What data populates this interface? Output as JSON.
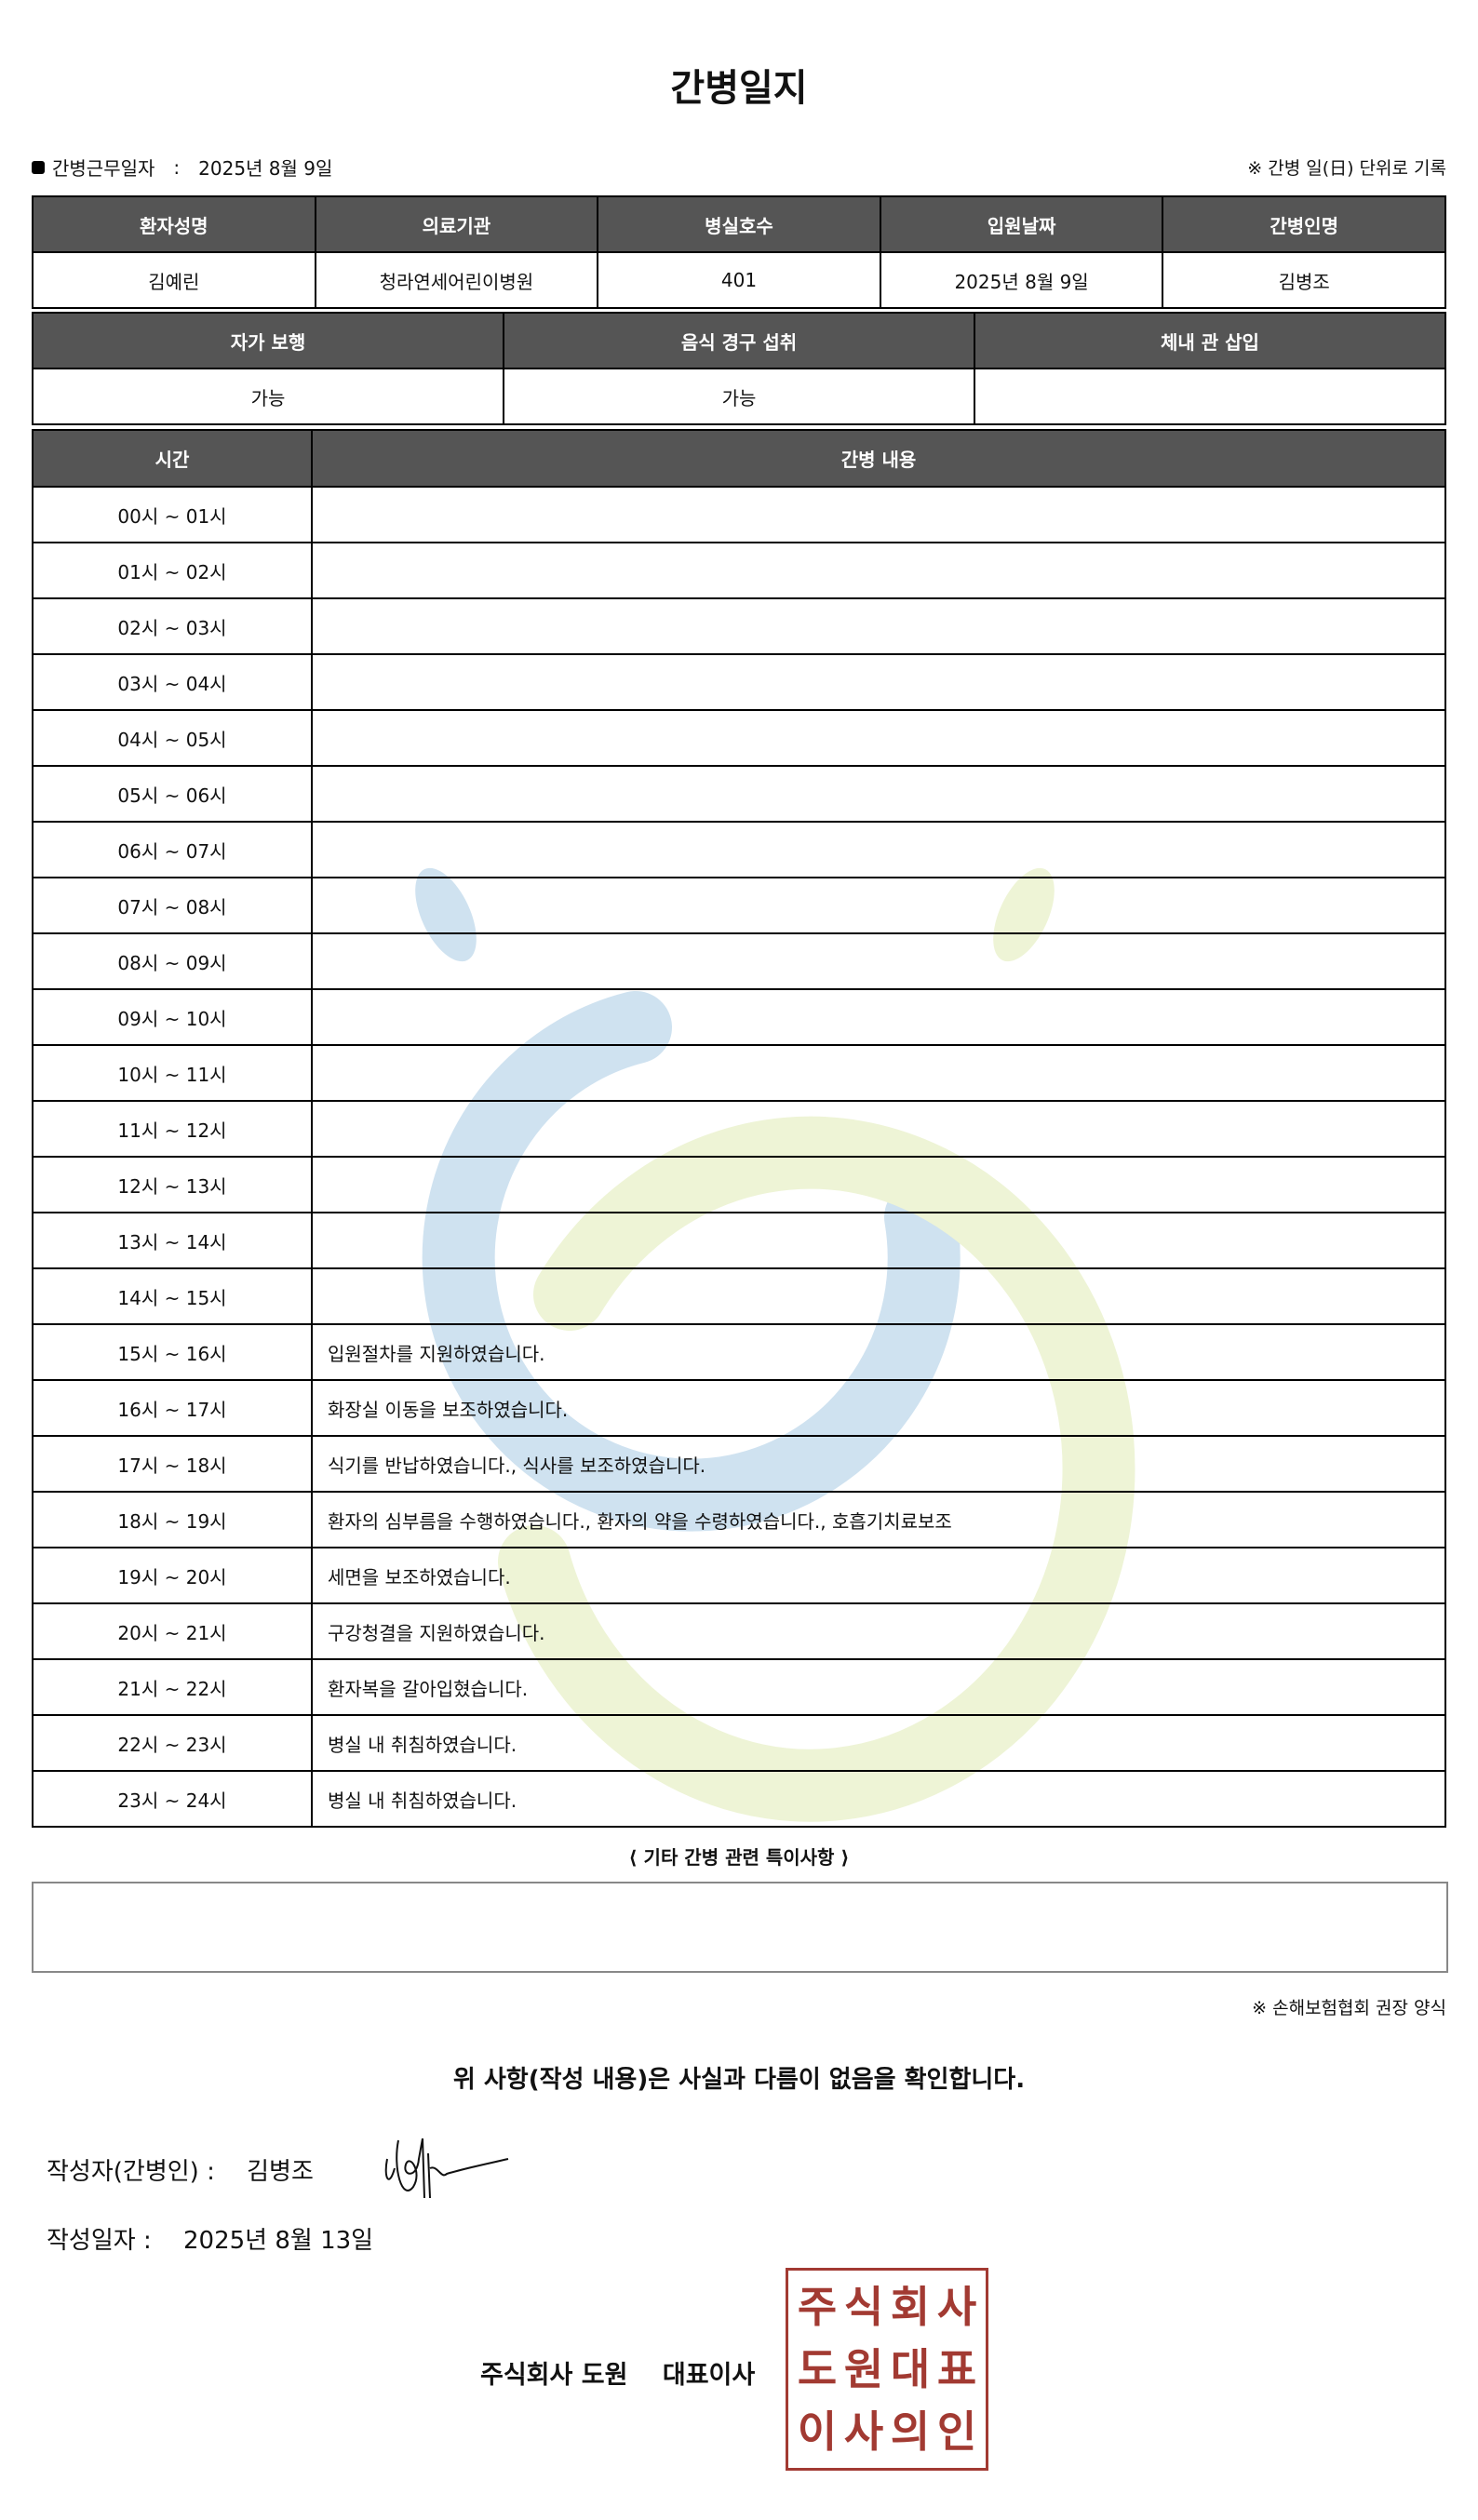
{
  "title": "간병일지",
  "work_date": {
    "label": "간병근무일자",
    "sep": ":",
    "value": "2025년 8월 9일"
  },
  "unit_note": "※ 간병 일(日) 단위로 기록",
  "patient_table": {
    "headers": [
      "환자성명",
      "의료기관",
      "병실호수",
      "입원날짜",
      "간병인명"
    ],
    "values": [
      "김예린",
      "청라연세어린이병원",
      "401",
      "2025년 8월 9일",
      "김병조"
    ]
  },
  "status_table": {
    "headers": [
      "자가 보행",
      "음식 경구 섭취",
      "체내 관 삽입"
    ],
    "values": [
      "가능",
      "가능",
      ""
    ]
  },
  "log_table": {
    "headers": [
      "시간",
      "간병 내용"
    ],
    "rows": [
      {
        "time": "00시 ~ 01시",
        "content": ""
      },
      {
        "time": "01시 ~ 02시",
        "content": ""
      },
      {
        "time": "02시 ~ 03시",
        "content": ""
      },
      {
        "time": "03시 ~ 04시",
        "content": ""
      },
      {
        "time": "04시 ~ 05시",
        "content": ""
      },
      {
        "time": "05시 ~ 06시",
        "content": ""
      },
      {
        "time": "06시 ~ 07시",
        "content": ""
      },
      {
        "time": "07시 ~ 08시",
        "content": ""
      },
      {
        "time": "08시 ~ 09시",
        "content": ""
      },
      {
        "time": "09시 ~ 10시",
        "content": ""
      },
      {
        "time": "10시 ~ 11시",
        "content": ""
      },
      {
        "time": "11시 ~ 12시",
        "content": ""
      },
      {
        "time": "12시 ~ 13시",
        "content": ""
      },
      {
        "time": "13시 ~ 14시",
        "content": ""
      },
      {
        "time": "14시 ~ 15시",
        "content": ""
      },
      {
        "time": "15시 ~ 16시",
        "content": "입원절차를 지원하였습니다."
      },
      {
        "time": "16시 ~ 17시",
        "content": "화장실 이동을 보조하였습니다."
      },
      {
        "time": "17시 ~ 18시",
        "content": "식기를 반납하였습니다., 식사를 보조하였습니다."
      },
      {
        "time": "18시 ~ 19시",
        "content": "환자의 심부름을 수행하였습니다., 환자의 약을 수령하였습니다., 호흡기치료보조"
      },
      {
        "time": "19시 ~ 20시",
        "content": "세면을 보조하였습니다."
      },
      {
        "time": "20시 ~ 21시",
        "content": "구강청결을 지원하였습니다."
      },
      {
        "time": "21시 ~ 22시",
        "content": "환자복을 갈아입혔습니다."
      },
      {
        "time": "22시 ~ 23시",
        "content": "병실 내 취침하였습니다."
      },
      {
        "time": "23시 ~ 24시",
        "content": "병실 내 취침하였습니다."
      }
    ]
  },
  "special_notes": {
    "label": "⟨ 기타 간병 관련 특이사항 ⟩",
    "value": ""
  },
  "form_note": "※ 손해보험협회 권장 양식",
  "confirm_text": "위 사항(작성 내용)은 사실과 다름이 없음을 확인합니다.",
  "writer": {
    "label": "작성자(간병인) :",
    "value": "김병조"
  },
  "write_date": {
    "label": "작성일자 :",
    "value": "2025년 8월 13일"
  },
  "company": {
    "name": "주식회사 도원",
    "title": "대표이사"
  },
  "stamp": {
    "text": "주식회사도원대표이사의인",
    "color": "#a23a32"
  },
  "watermark_colors": {
    "blue": "#cfe2f0",
    "green": "#eef4d6"
  },
  "header_bg": "#555555"
}
